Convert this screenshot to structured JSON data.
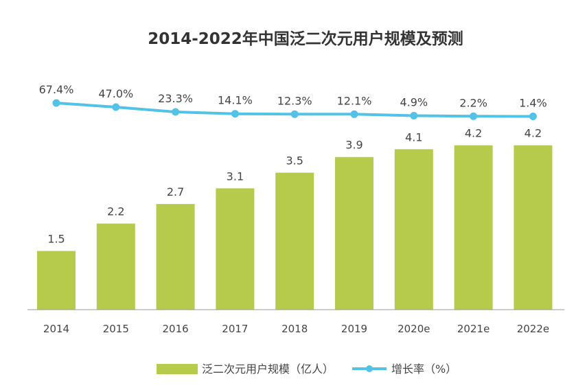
{
  "chart_data": {
    "type": "bar",
    "title": "2014-2022年中国泛二次元用户规模及预测",
    "categories": [
      "2014",
      "2015",
      "2016",
      "2017",
      "2018",
      "2019",
      "2020e",
      "2021e",
      "2022e"
    ],
    "series": [
      {
        "name": "泛二次元用户规模（亿人）",
        "kind": "bar",
        "color": "#b6cb4c",
        "values": [
          1.5,
          2.2,
          2.7,
          3.1,
          3.5,
          3.9,
          4.1,
          4.2,
          4.2
        ],
        "labels": [
          "1.5",
          "2.2",
          "2.7",
          "3.1",
          "3.5",
          "3.9",
          "4.1",
          "4.2",
          "4.2"
        ]
      },
      {
        "name": "增长率（%）",
        "kind": "line",
        "color": "#52c2e7",
        "values": [
          67.4,
          47.0,
          23.3,
          14.1,
          12.3,
          12.1,
          4.9,
          2.2,
          1.4
        ],
        "labels": [
          "67.4%",
          "47.0%",
          "23.3%",
          "14.1%",
          "12.3%",
          "12.1%",
          "4.9%",
          "2.2%",
          "1.4%"
        ]
      }
    ],
    "ylim": [
      0,
      5
    ],
    "y2lim": [
      0,
      67.4
    ],
    "grid": false,
    "legend": "bottom-center"
  }
}
